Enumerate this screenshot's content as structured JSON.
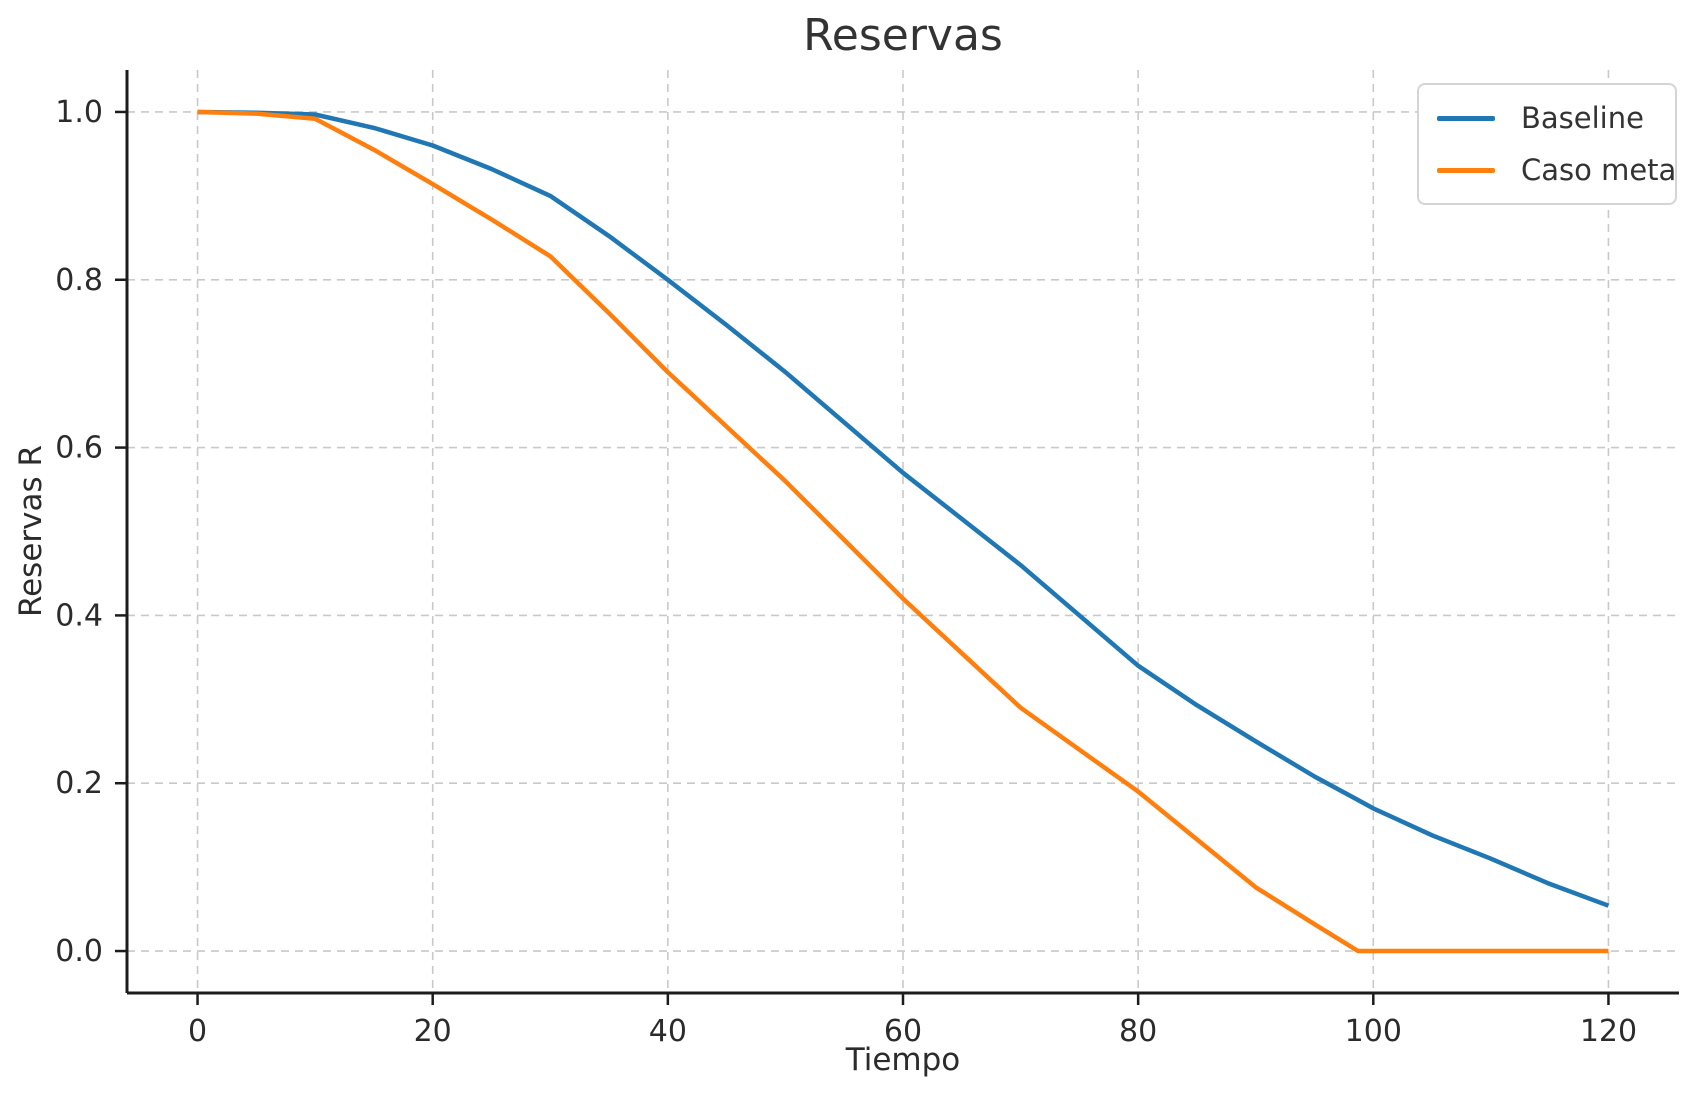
{
  "chart_data": {
    "type": "line",
    "title": "Reservas",
    "xlabel": "Tiempo",
    "ylabel": "Reservas R",
    "xlim": [
      -6,
      126
    ],
    "ylim": [
      -0.05,
      1.05
    ],
    "xticks": [
      0,
      20,
      40,
      60,
      80,
      100,
      120
    ],
    "xtick_labels": [
      "0",
      "20",
      "40",
      "60",
      "80",
      "100",
      "120"
    ],
    "yticks": [
      0.0,
      0.2,
      0.4,
      0.6,
      0.8,
      1.0
    ],
    "ytick_labels": [
      "0.0",
      "0.2",
      "0.4",
      "0.6",
      "0.8",
      "1.0"
    ],
    "grid": "dashed",
    "grid_color": "#c9c9c9",
    "spine_color": "#1c1c1c",
    "text_color": "#2b2b2b",
    "legend_position": "upper right",
    "x": [
      0,
      5,
      10,
      15,
      20,
      25,
      30,
      35,
      40,
      45,
      50,
      55,
      60,
      65,
      70,
      75,
      80,
      85,
      90,
      95,
      98.7,
      100,
      105,
      110,
      115,
      120
    ],
    "series": [
      {
        "name": "Baseline",
        "color": "#1f77b4",
        "values": [
          1.0,
          0.999,
          0.997,
          0.981,
          0.96,
          0.932,
          0.9,
          0.852,
          0.8,
          0.746,
          0.69,
          0.63,
          0.57,
          0.515,
          0.46,
          0.4,
          0.34,
          0.293,
          0.25,
          0.208,
          0.18,
          0.17,
          0.138,
          0.11,
          0.08,
          0.054
        ]
      },
      {
        "name": "Caso meta",
        "color": "#ff7f0e",
        "values": [
          1.0,
          0.998,
          0.992,
          0.955,
          0.914,
          0.872,
          0.828,
          0.76,
          0.69,
          0.625,
          0.56,
          0.49,
          0.42,
          0.355,
          0.29,
          0.24,
          0.19,
          0.133,
          0.076,
          0.032,
          0.0,
          0.0,
          0.0,
          0.0,
          0.0,
          0.0
        ]
      }
    ]
  }
}
